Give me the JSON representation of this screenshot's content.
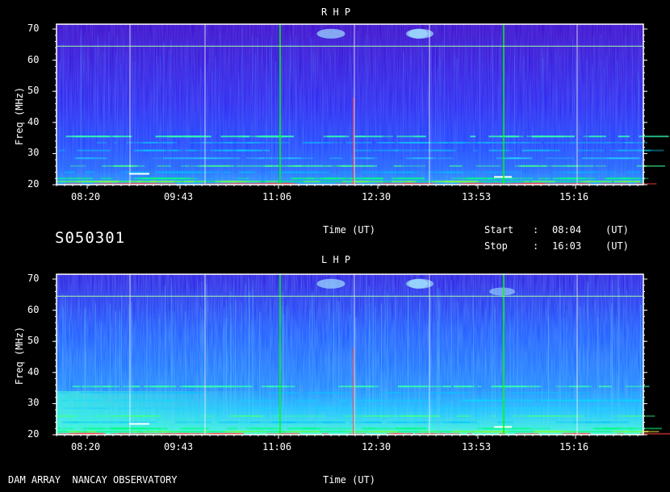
{
  "panels": [
    {
      "id": "rhp",
      "title": "R H P",
      "ylabel": "Freq (MHz)",
      "xlabel": "Time (UT)",
      "yticks": [
        20,
        30,
        40,
        50,
        60,
        70
      ],
      "xticks": [
        "08:20",
        "09:43",
        "11:06",
        "12:30",
        "13:53",
        "15:16"
      ]
    },
    {
      "id": "lhp",
      "title": "L H P",
      "ylabel": "Freq (MHz)",
      "xlabel": "Time (UT)",
      "yticks": [
        20,
        30,
        40,
        50,
        60,
        70
      ],
      "xticks": [
        "08:20",
        "09:43",
        "11:06",
        "12:30",
        "13:53",
        "15:16"
      ]
    }
  ],
  "info": {
    "code": "S050301",
    "start_label": "Start",
    "stop_label": "Stop",
    "sep": ":",
    "start_time": "08:04",
    "stop_time": "16:03",
    "unit": "(UT)"
  },
  "footer": {
    "observatory": "DAM ARRAY  NANCAY OBSERVATORY"
  },
  "chart_data": {
    "type": "heatmap",
    "xlim": [
      "08:04",
      "16:03"
    ],
    "ylim": [
      20,
      70
    ],
    "grid": true,
    "colors": {
      "background": "#1a1aff",
      "low": "#2a00c8",
      "mid": "#00c8ff",
      "high": "#00ff40",
      "burst": "#ffffff",
      "grid": "#ffffff",
      "marker": "#00ff00"
    }
  }
}
